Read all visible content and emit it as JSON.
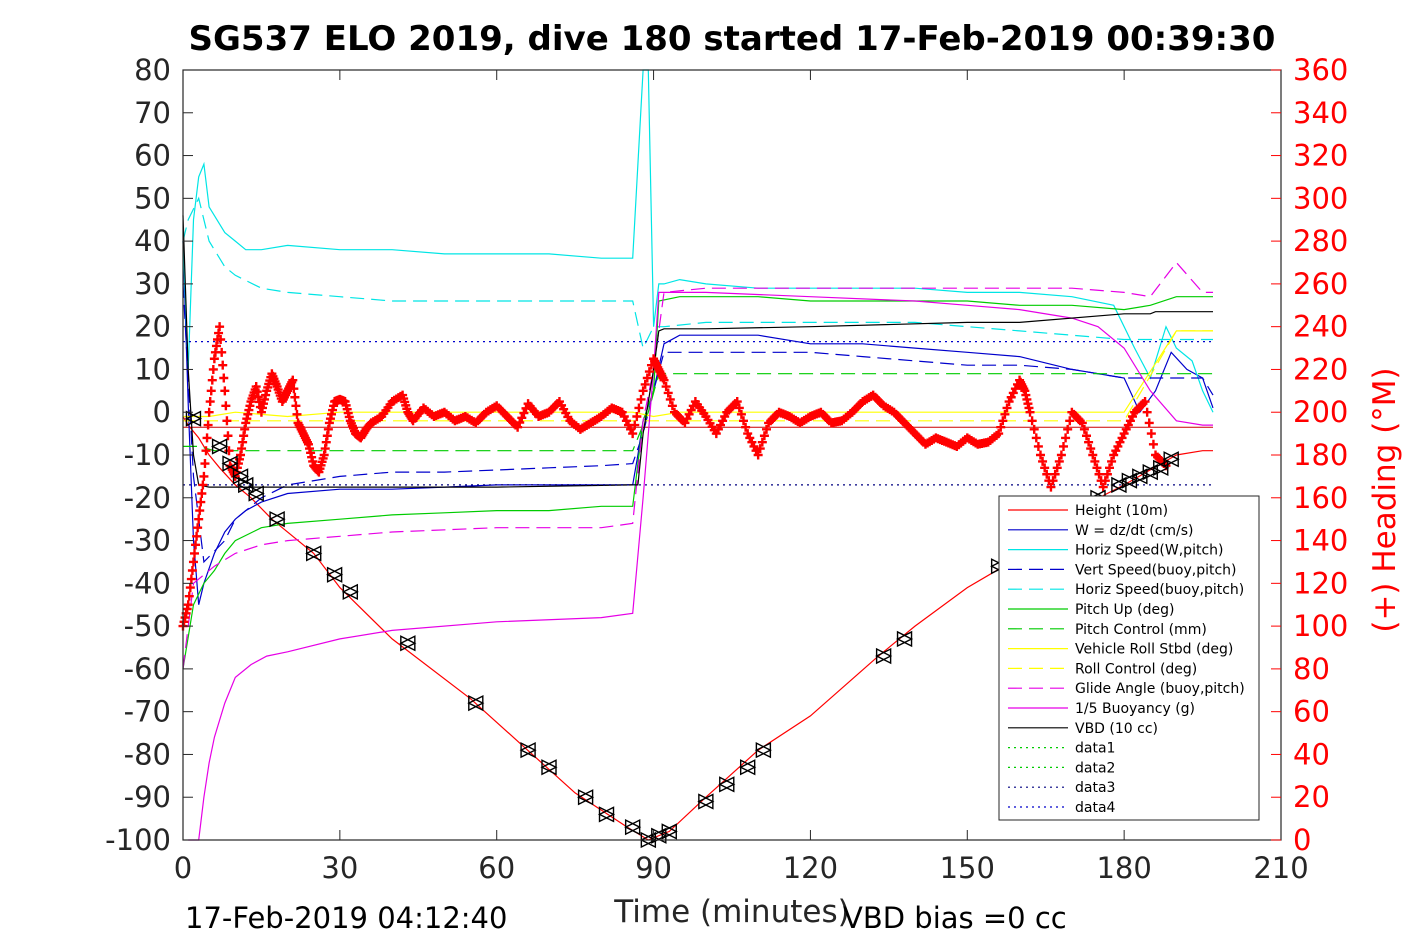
{
  "chart_data": {
    "type": "line",
    "title": "SG537 ELO 2019, dive 180 started 17-Feb-2019 00:39:30",
    "xlabel": "Time (minutes)",
    "ylabel_right": "(+) Heading (°M)",
    "xlim": [
      0,
      210
    ],
    "ylim": [
      -100,
      80
    ],
    "ylim_right": [
      0,
      360
    ],
    "x_ticks": [
      "0",
      "30",
      "60",
      "90",
      "120",
      "150",
      "180",
      "210"
    ],
    "y_ticks": [
      "80",
      "70",
      "60",
      "50",
      "40",
      "30",
      "20",
      "10",
      "0",
      "-10",
      "-20",
      "-30",
      "-40",
      "-50",
      "-60",
      "-70",
      "-80",
      "-90",
      "-100"
    ],
    "y_ticks_right": [
      "360",
      "340",
      "320",
      "300",
      "280",
      "260",
      "240",
      "220",
      "200",
      "180",
      "160",
      "140",
      "120",
      "100",
      "80",
      "60",
      "40",
      "20",
      "0"
    ],
    "legend_position": "lower-right",
    "footer_left": "17-Feb-2019 04:12:40",
    "footer_right": "VBD bias =0 cc",
    "series": [
      {
        "name": "Height (10m)",
        "color": "#ff0000",
        "style": "solid",
        "x": [
          0,
          1,
          3,
          5,
          7,
          10,
          13,
          17,
          25,
          30,
          40,
          55,
          65,
          75,
          85,
          89,
          93,
          100,
          110,
          120,
          133,
          140,
          150,
          157,
          165,
          172,
          180,
          190,
          195,
          197
        ],
        "y": [
          -1,
          -3,
          -6,
          -10,
          -13,
          -17,
          -20,
          -25,
          -33,
          -41,
          -53,
          -67,
          -78,
          -89,
          -97,
          -100,
          -98,
          -90,
          -79,
          -71,
          -57,
          -50,
          -41,
          -36,
          -29,
          -22,
          -17,
          -10,
          -9,
          -9
        ]
      },
      {
        "name": "W = dz/dt (cm/s)",
        "color": "#0000cc",
        "style": "solid",
        "x": [
          0,
          1,
          2,
          3,
          4,
          6,
          8,
          10,
          12,
          15,
          20,
          30,
          40,
          50,
          60,
          70,
          80,
          86,
          87,
          88,
          90,
          92,
          95,
          100,
          110,
          120,
          130,
          140,
          150,
          160,
          170,
          175,
          180,
          183,
          186,
          189,
          192,
          195,
          197
        ],
        "y": [
          40,
          2,
          -30,
          -45,
          -40,
          -33,
          -28,
          -25,
          -23,
          -21,
          -19,
          -18,
          -18,
          -17.5,
          -17,
          -17,
          -17,
          -17,
          -10,
          -2,
          5,
          16,
          18,
          18,
          18,
          16,
          16,
          15,
          14,
          13,
          10,
          9,
          8,
          0,
          5,
          14,
          10,
          8,
          1
        ]
      },
      {
        "name": "Horiz Speed(W,pitch)",
        "color": "#00e5e5",
        "style": "solid",
        "x": [
          0,
          1,
          2,
          3,
          4,
          5,
          8,
          10,
          12,
          15,
          20,
          30,
          40,
          50,
          60,
          70,
          80,
          86,
          88,
          89,
          90,
          91,
          92,
          95,
          100,
          110,
          120,
          130,
          140,
          150,
          160,
          170,
          178,
          182,
          185,
          188,
          190,
          193,
          195,
          197
        ],
        "y": [
          40,
          10,
          45,
          55,
          58,
          48,
          42,
          40,
          38,
          38,
          39,
          38,
          38,
          37,
          37,
          37,
          36,
          36,
          80,
          80,
          20,
          30,
          30,
          31,
          30,
          29,
          29,
          29,
          29,
          28,
          28,
          27,
          25,
          15,
          8,
          20,
          15,
          12,
          5,
          0
        ]
      },
      {
        "name": "Vert Speed(buoy,pitch)",
        "color": "#0000cc",
        "style": "dashed",
        "x": [
          0,
          2,
          4,
          8,
          10,
          15,
          20,
          30,
          40,
          50,
          60,
          70,
          80,
          86,
          88,
          90,
          92,
          100,
          110,
          120,
          130,
          140,
          150,
          160,
          170,
          180,
          190,
          195,
          197
        ],
        "y": [
          30,
          -15,
          -35,
          -30,
          -25,
          -20,
          -17,
          -15,
          -14,
          -14,
          -13.5,
          -13,
          -12.5,
          -12,
          -5,
          5,
          14,
          14,
          14,
          14,
          13,
          12,
          11,
          11,
          10,
          8,
          8,
          8,
          4
        ]
      },
      {
        "name": "Horiz Speed(buoy,pitch)",
        "color": "#00e5e5",
        "style": "dashed",
        "x": [
          0,
          1,
          3,
          5,
          8,
          10,
          15,
          20,
          30,
          40,
          50,
          60,
          70,
          80,
          86,
          88,
          90,
          92,
          100,
          110,
          120,
          130,
          140,
          150,
          160,
          170,
          180,
          190,
          195,
          197
        ],
        "y": [
          40,
          45,
          50,
          40,
          34,
          32,
          29,
          28,
          27,
          26,
          26,
          26,
          26,
          26,
          26,
          15,
          20,
          20,
          21,
          21,
          21,
          21,
          21,
          20,
          19,
          18,
          17,
          17,
          17,
          17
        ]
      },
      {
        "name": "Pitch Up (deg)",
        "color": "#00cc00",
        "style": "solid",
        "x": [
          0,
          2,
          4,
          6,
          8,
          10,
          15,
          20,
          30,
          40,
          50,
          60,
          70,
          80,
          86,
          88,
          90,
          91,
          95,
          100,
          110,
          120,
          130,
          140,
          150,
          160,
          170,
          180,
          185,
          190,
          195,
          197
        ],
        "y": [
          -60,
          -45,
          -40,
          -37,
          -33,
          -30,
          -27,
          -26,
          -25,
          -24,
          -23.5,
          -23,
          -23,
          -22,
          -22,
          -2,
          5,
          26,
          27,
          27,
          27,
          26,
          26,
          26,
          26,
          25,
          25,
          24,
          25,
          27,
          27,
          27
        ]
      },
      {
        "name": "Pitch Control (mm)",
        "color": "#00cc00",
        "style": "dashed",
        "x": [
          0,
          3,
          6,
          10,
          20,
          40,
          60,
          86,
          89,
          91,
          120,
          150,
          180,
          197
        ],
        "y": [
          -8,
          -8,
          -9,
          -9,
          -9,
          -9,
          -9,
          -9,
          0,
          9,
          9,
          9,
          9,
          9
        ]
      },
      {
        "name": "Vehicle Roll Stbd (deg)",
        "color": "#ffff00",
        "style": "solid",
        "x": [
          0,
          5,
          10,
          20,
          30,
          40,
          50,
          60,
          70,
          80,
          86,
          90,
          95,
          100,
          110,
          120,
          130,
          140,
          150,
          160,
          170,
          180,
          190,
          197
        ],
        "y": [
          -1,
          -1,
          0,
          -1,
          0,
          0,
          0,
          0,
          0,
          0,
          0,
          -1,
          0,
          0,
          0,
          0,
          0,
          0,
          0,
          0,
          0,
          0,
          19,
          19
        ]
      },
      {
        "name": "Roll Control (deg)",
        "color": "#ffff00",
        "style": "dashed",
        "x": [
          0,
          30,
          60,
          86,
          90,
          120,
          150,
          180,
          190,
          197
        ],
        "y": [
          -2,
          -2,
          -2,
          -2,
          -2,
          -2,
          -2,
          -2,
          19,
          19
        ]
      },
      {
        "name": "Glide Angle (buoy,pitch)",
        "color": "#e600e6",
        "style": "dashed",
        "x": [
          0,
          2,
          4,
          6,
          10,
          15,
          20,
          30,
          40,
          60,
          80,
          86,
          88,
          90,
          92,
          100,
          110,
          120,
          130,
          140,
          150,
          160,
          170,
          180,
          185,
          190,
          195,
          197
        ],
        "y": [
          -60,
          -40,
          -38,
          -36,
          -33,
          -31,
          -30,
          -29,
          -28,
          -27,
          -27,
          -26,
          -2,
          10,
          28,
          29,
          29,
          29,
          29,
          29,
          29,
          29,
          29,
          28,
          27,
          35,
          28,
          28
        ]
      },
      {
        "name": "1/5 Buoyancy (g)",
        "color": "#e600e6",
        "style": "solid",
        "x": [
          1,
          3,
          4,
          5,
          6,
          8,
          10,
          13,
          16,
          20,
          30,
          40,
          60,
          80,
          86,
          88,
          90,
          91,
          100,
          120,
          140,
          150,
          160,
          170,
          175,
          180,
          185,
          190,
          195,
          197
        ],
        "y": [
          -100,
          -100,
          -90,
          -82,
          -76,
          -68,
          -62,
          -59,
          -57,
          -56,
          -53,
          -51,
          -49,
          -48,
          -47,
          -20,
          10,
          28,
          28,
          27,
          26,
          25,
          24,
          22,
          20,
          15,
          5,
          -2,
          -3,
          -3
        ]
      },
      {
        "name": "VBD (10 cc)",
        "color": "#000000",
        "style": "solid",
        "x": [
          0,
          1,
          2,
          3,
          5,
          10,
          30,
          60,
          86,
          87,
          88,
          90,
          91,
          92,
          100,
          120,
          150,
          160,
          180,
          185,
          186,
          197
        ],
        "y": [
          46,
          10,
          -10,
          -17,
          -17.5,
          -17.5,
          -17.5,
          -17.5,
          -17,
          -17,
          -5,
          10,
          19,
          19.5,
          19.5,
          20,
          21,
          21,
          23,
          23,
          23.5,
          23.5
        ]
      },
      {
        "name": "data1",
        "color": "#00cc00",
        "style": "dotted",
        "x": [],
        "y": []
      },
      {
        "name": "data2",
        "color": "#00cc00",
        "style": "dotted",
        "x": [],
        "y": []
      },
      {
        "name": "data3",
        "color": "#000080",
        "style": "dotted",
        "x": [
          0,
          197
        ],
        "y": [
          -17,
          -17
        ]
      },
      {
        "name": "data4",
        "color": "#0000cc",
        "style": "dotted",
        "x": [
          0,
          197
        ],
        "y": [
          16.5,
          16.5
        ]
      }
    ],
    "reference_lines": [
      {
        "color": "#cc0000",
        "y": -3.5,
        "x": [
          0,
          197
        ]
      }
    ],
    "heading_series": {
      "color": "#ff0000",
      "marker": "+",
      "axis": "right",
      "x": [
        0,
        1,
        2,
        3,
        4,
        5,
        6,
        7,
        8,
        9,
        10,
        11,
        12,
        13,
        14,
        15,
        16,
        17,
        18,
        19,
        20,
        21,
        22,
        23,
        24,
        25,
        26,
        27,
        28,
        29,
        30,
        31,
        32,
        33,
        34,
        35,
        36,
        38,
        40,
        42,
        43,
        44,
        46,
        48,
        50,
        52,
        54,
        56,
        58,
        60,
        62,
        64,
        66,
        68,
        70,
        72,
        74,
        76,
        78,
        80,
        82,
        84,
        86,
        88,
        90,
        91,
        92,
        94,
        96,
        98,
        100,
        102,
        104,
        106,
        108,
        110,
        112,
        114,
        116,
        118,
        120,
        122,
        124,
        126,
        128,
        130,
        132,
        134,
        136,
        138,
        140,
        142,
        144,
        146,
        148,
        150,
        152,
        154,
        156,
        158,
        160,
        161,
        162,
        164,
        166,
        168,
        170,
        172,
        174,
        176,
        178,
        180,
        182,
        184,
        186,
        188
      ],
      "y": [
        100,
        110,
        130,
        150,
        170,
        200,
        225,
        240,
        210,
        175,
        170,
        180,
        195,
        205,
        212,
        200,
        210,
        218,
        212,
        205,
        210,
        215,
        195,
        190,
        185,
        175,
        172,
        180,
        195,
        205,
        206,
        205,
        196,
        190,
        188,
        192,
        195,
        198,
        205,
        208,
        200,
        196,
        202,
        198,
        200,
        196,
        198,
        195,
        200,
        203,
        198,
        193,
        204,
        198,
        200,
        205,
        196,
        192,
        195,
        198,
        202,
        200,
        190,
        210,
        225,
        220,
        215,
        200,
        195,
        205,
        198,
        190,
        200,
        205,
        190,
        180,
        195,
        200,
        198,
        195,
        198,
        200,
        195,
        196,
        200,
        205,
        208,
        203,
        200,
        195,
        190,
        185,
        188,
        186,
        184,
        188,
        185,
        186,
        190,
        205,
        215,
        210,
        200,
        180,
        165,
        180,
        200,
        195,
        180,
        165,
        180,
        190,
        200,
        205,
        180,
        175
      ]
    },
    "depth_markers": {
      "color": "#000000",
      "shape": "triangle",
      "x": [
        2,
        7,
        9,
        11,
        12,
        14,
        18,
        25,
        29,
        32,
        43,
        56,
        66,
        70,
        77,
        81,
        86,
        89,
        91,
        93,
        100,
        104,
        108,
        111,
        134,
        138,
        156,
        172,
        175,
        179,
        181,
        183,
        185,
        187,
        189
      ],
      "y": [
        -1.5,
        -8,
        -12,
        -15,
        -17,
        -19,
        -25,
        -33,
        -38,
        -42,
        -54,
        -68,
        -79,
        -83,
        -90,
        -94,
        -97,
        -100,
        -99,
        -98,
        -91,
        -87,
        -83,
        -79,
        -57,
        -53,
        -36,
        -24,
        -20,
        -17,
        -16,
        -15,
        -14,
        -13,
        -11
      ]
    }
  }
}
